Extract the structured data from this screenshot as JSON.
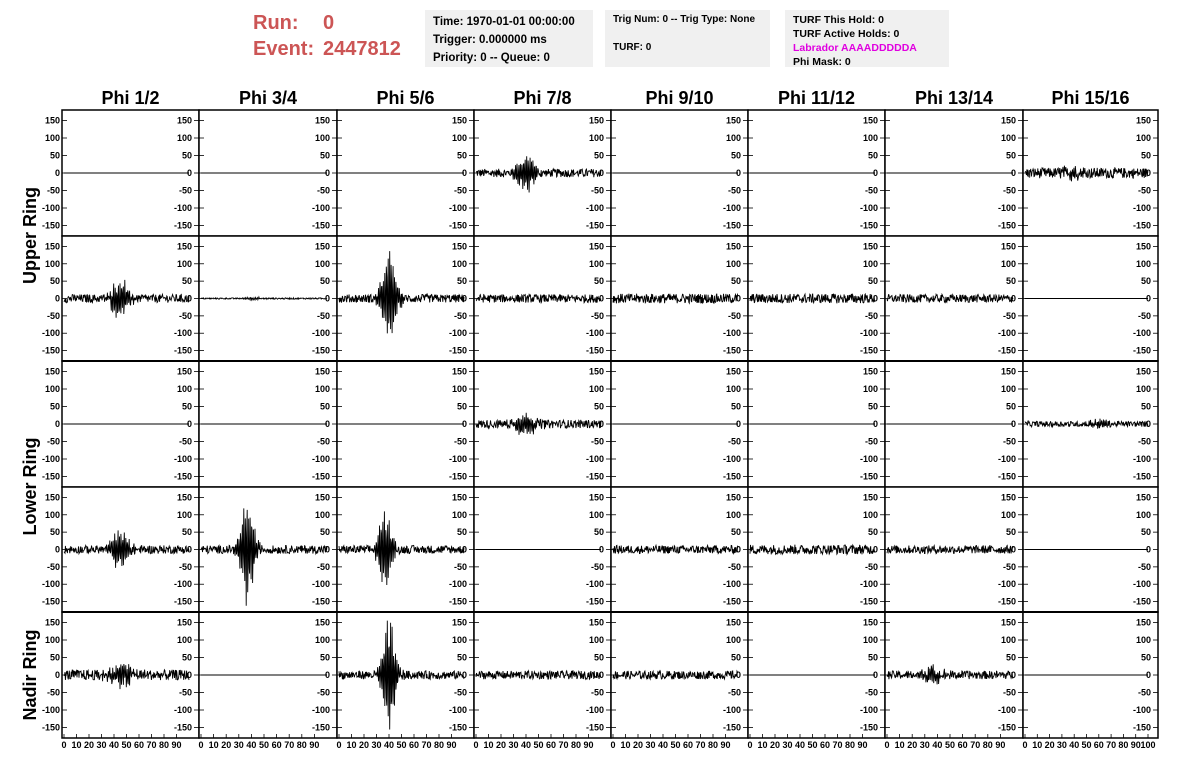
{
  "header": {
    "run_label": "Run:",
    "run_value": "0",
    "event_label": "Event:",
    "event_value": "2447812"
  },
  "info": {
    "time": "Time: 1970-01-01 00:00:00",
    "trigger": "Trigger: 0.000000 ms",
    "priority": "Priority: 0 -- Queue: 0",
    "trig": "Trig Num: 0 -- Trig Type: None",
    "turf": "TURF: 0",
    "turf_hold": "TURF This Hold: 0",
    "turf_active": "TURF Active Holds: 0",
    "labrador": "Labrador AAAADDDDDA",
    "phi_mask": "Phi Mask: 0"
  },
  "colors": {
    "accent": "#cc5555",
    "labrador": "#e000e0",
    "box_bg": "#f0f0f0"
  },
  "chart_data": {
    "type": "line",
    "columns": [
      "Phi 1/2",
      "Phi 3/4",
      "Phi 5/6",
      "Phi 7/8",
      "Phi 9/10",
      "Phi 11/12",
      "Phi 13/14",
      "Phi 15/16"
    ],
    "rows": [
      {
        "name": "Upper Ring",
        "panels": [
          "top",
          "bottom"
        ]
      },
      {
        "name": "Lower Ring",
        "panels": [
          "top",
          "bottom"
        ]
      },
      {
        "name": "Nadir Ring",
        "panels": [
          "single"
        ]
      }
    ],
    "xlim": [
      0,
      100
    ],
    "ylim": [
      -180,
      180
    ],
    "x_ticks": [
      "0",
      "10",
      "20",
      "30",
      "40",
      "50",
      "60",
      "70",
      "80",
      "90",
      "100"
    ],
    "y_ticks": [
      -150,
      -100,
      -50,
      0,
      50,
      100,
      150
    ],
    "waveforms": [
      [
        {
          "amp": 0,
          "noise": 0,
          "c": 45,
          "w": 10
        },
        {
          "amp": 0,
          "noise": 0,
          "c": 40,
          "w": 8
        },
        {
          "amp": 0,
          "noise": 0,
          "c": 40,
          "w": 8
        },
        {
          "amp": 55,
          "noise": 12,
          "c": 40,
          "w": 8
        },
        {
          "amp": 0,
          "noise": 0,
          "c": 40,
          "w": 8
        },
        {
          "amp": 0,
          "noise": 0,
          "c": 40,
          "w": 8
        },
        {
          "amp": 0,
          "noise": 0,
          "c": 40,
          "w": 8
        },
        {
          "amp": 15,
          "noise": 15,
          "c": 40,
          "w": 10
        }
      ],
      [
        {
          "amp": 60,
          "noise": 12,
          "c": 45,
          "w": 8
        },
        {
          "amp": 5,
          "noise": 2,
          "c": 40,
          "w": 8
        },
        {
          "amp": 140,
          "noise": 12,
          "c": 40,
          "w": 7
        },
        {
          "amp": 0,
          "noise": 12,
          "c": 40,
          "w": 8
        },
        {
          "amp": 0,
          "noise": 14,
          "c": 40,
          "w": 8
        },
        {
          "amp": 0,
          "noise": 14,
          "c": 40,
          "w": 8
        },
        {
          "amp": 0,
          "noise": 12,
          "c": 40,
          "w": 8
        },
        {
          "amp": 0,
          "noise": 0,
          "c": 40,
          "w": 8
        }
      ],
      [
        {
          "amp": 0,
          "noise": 0,
          "c": 40,
          "w": 8
        },
        {
          "amp": 0,
          "noise": 0,
          "c": 40,
          "w": 8
        },
        {
          "amp": 0,
          "noise": 0,
          "c": 40,
          "w": 8
        },
        {
          "amp": 35,
          "noise": 12,
          "c": 40,
          "w": 10
        },
        {
          "amp": 0,
          "noise": 0,
          "c": 40,
          "w": 8
        },
        {
          "amp": 0,
          "noise": 0,
          "c": 40,
          "w": 8
        },
        {
          "amp": 0,
          "noise": 0,
          "c": 40,
          "w": 8
        },
        {
          "amp": 10,
          "noise": 8,
          "c": 60,
          "w": 10
        }
      ],
      [
        {
          "amp": 60,
          "noise": 12,
          "c": 45,
          "w": 8
        },
        {
          "amp": 170,
          "noise": 12,
          "c": 37,
          "w": 6
        },
        {
          "amp": 130,
          "noise": 12,
          "c": 37,
          "w": 6
        },
        {
          "amp": 0,
          "noise": 0,
          "c": 40,
          "w": 8
        },
        {
          "amp": 0,
          "noise": 12,
          "c": 40,
          "w": 8
        },
        {
          "amp": 0,
          "noise": 14,
          "c": 40,
          "w": 8
        },
        {
          "amp": 0,
          "noise": 12,
          "c": 40,
          "w": 8
        },
        {
          "amp": 0,
          "noise": 0,
          "c": 40,
          "w": 8
        }
      ],
      [
        {
          "amp": 35,
          "noise": 15,
          "c": 45,
          "w": 12
        },
        {
          "amp": 0,
          "noise": 0,
          "c": 40,
          "w": 8
        },
        {
          "amp": 185,
          "noise": 12,
          "c": 40,
          "w": 6
        },
        {
          "amp": 0,
          "noise": 12,
          "c": 40,
          "w": 8
        },
        {
          "amp": 0,
          "noise": 12,
          "c": 40,
          "w": 8
        },
        {
          "amp": 0,
          "noise": 0,
          "c": 40,
          "w": 8
        },
        {
          "amp": 25,
          "noise": 12,
          "c": 35,
          "w": 10
        },
        {
          "amp": 0,
          "noise": 0,
          "c": 40,
          "w": 8
        }
      ]
    ]
  }
}
